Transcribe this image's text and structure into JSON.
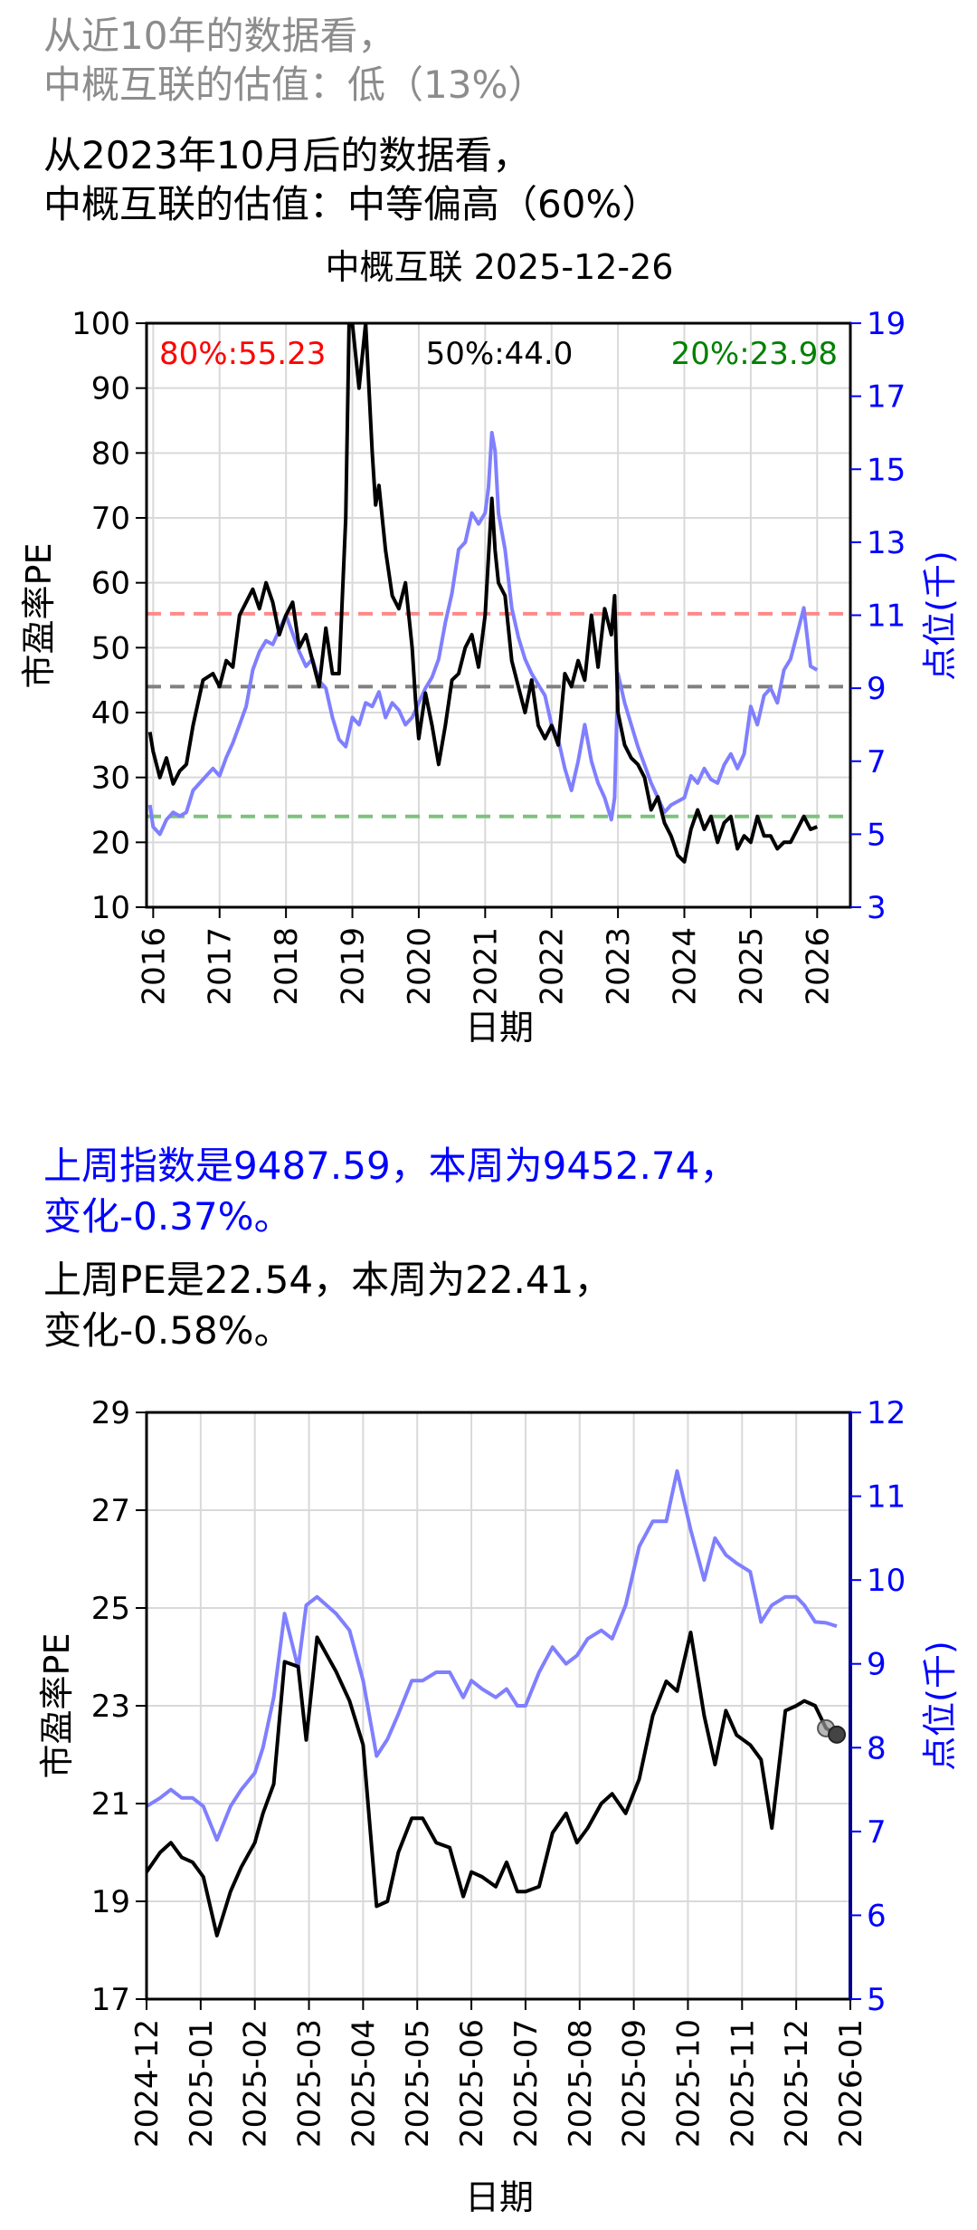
{
  "text": {
    "decade_line1": "从近10年的数据看，",
    "decade_line2": "中概互联的估值：低（13%）",
    "since_line1": "从2023年10月后的数据看，",
    "since_line2": "中概互联的估值：中等偏高（60%）",
    "index_change_line1": "上周指数是9487.59，本周为9452.74，",
    "index_change_line2": "变化-0.37%。",
    "pe_change_line1": "上周PE是22.54，本周为22.41，",
    "pe_change_line2": "变化-0.58%。"
  },
  "colors": {
    "pe_line": "#000000",
    "index_line": "#7f7fff",
    "p80": "#ff0000",
    "p50": "#000000",
    "p20": "#008000",
    "right_axis": "#0000ff"
  },
  "chart_data": [
    {
      "type": "line",
      "title": "中概互联 2025-12-26",
      "xlabel": "日期",
      "ylabel": "市盈率PE",
      "y2label": "点位(千)",
      "ylim": [
        10,
        100
      ],
      "y2lim": [
        3,
        19
      ],
      "xlim": [
        2015.9,
        2026.5
      ],
      "x_ticks": [
        "2016",
        "2017",
        "2018",
        "2019",
        "2020",
        "2021",
        "2022",
        "2023",
        "2024",
        "2025",
        "2026"
      ],
      "y_ticks": [
        "10",
        "20",
        "30",
        "40",
        "50",
        "60",
        "70",
        "80",
        "90",
        "100"
      ],
      "y2_ticks": [
        "3",
        "5",
        "7",
        "9",
        "11",
        "13",
        "15",
        "17",
        "19"
      ],
      "grid": true,
      "percentiles": [
        {
          "label": "80%:55.23",
          "value": 55.23,
          "color": "#ff0000"
        },
        {
          "label": "50%:44.0",
          "value": 44.0,
          "color": "#000000"
        },
        {
          "label": "20%:23.98",
          "value": 23.98,
          "color": "#008000"
        }
      ],
      "series": [
        {
          "axis": "left",
          "x": [
            2015.95,
            2016.0,
            2016.1,
            2016.2,
            2016.3,
            2016.4,
            2016.5,
            2016.6,
            2016.75,
            2016.9,
            2017.0,
            2017.1,
            2017.2,
            2017.3,
            2017.4,
            2017.5,
            2017.6,
            2017.7,
            2017.8,
            2017.9,
            2018.0,
            2018.1,
            2018.2,
            2018.3,
            2018.4,
            2018.5,
            2018.6,
            2018.7,
            2018.8,
            2018.9,
            2018.95,
            2019.0,
            2019.1,
            2019.2,
            2019.3,
            2019.35,
            2019.4,
            2019.5,
            2019.6,
            2019.7,
            2019.8,
            2019.9,
            2019.95,
            2020.0,
            2020.1,
            2020.2,
            2020.3,
            2020.4,
            2020.5,
            2020.6,
            2020.7,
            2020.8,
            2020.9,
            2021.0,
            2021.05,
            2021.1,
            2021.15,
            2021.2,
            2021.3,
            2021.4,
            2021.5,
            2021.6,
            2021.7,
            2021.8,
            2021.9,
            2022.0,
            2022.1,
            2022.2,
            2022.3,
            2022.4,
            2022.5,
            2022.6,
            2022.7,
            2022.8,
            2022.9,
            2022.95,
            2023.0,
            2023.1,
            2023.2,
            2023.3,
            2023.4,
            2023.5,
            2023.6,
            2023.7,
            2023.8,
            2023.9,
            2024.0,
            2024.1,
            2024.2,
            2024.3,
            2024.4,
            2024.5,
            2024.6,
            2024.7,
            2024.8,
            2024.9,
            2025.0,
            2025.1,
            2025.2,
            2025.3,
            2025.4,
            2025.5,
            2025.6,
            2025.7,
            2025.8,
            2025.9,
            2026.0
          ],
          "values": [
            37,
            34,
            30,
            33,
            29,
            31,
            32,
            38,
            45,
            46,
            44,
            48,
            47,
            55,
            57,
            59,
            56,
            60,
            57,
            52,
            55,
            57,
            50,
            52,
            48,
            44,
            53,
            46,
            46,
            70,
            100,
            100,
            90,
            100,
            80,
            72,
            75,
            65,
            58,
            56,
            60,
            50,
            42,
            36,
            43,
            38,
            32,
            38,
            45,
            46,
            50,
            52,
            47,
            55,
            64,
            73,
            65,
            60,
            58,
            48,
            44,
            40,
            45,
            38,
            36,
            38,
            35,
            46,
            44,
            48,
            45,
            55,
            47,
            56,
            52,
            58,
            40,
            35,
            33,
            32,
            30,
            25,
            27,
            23,
            21,
            18,
            17,
            22,
            25,
            22,
            24,
            20,
            23,
            24,
            19,
            21,
            20,
            24,
            21,
            21,
            19,
            20,
            20,
            22,
            24,
            22,
            22.4
          ],
          "color": "#000000"
        },
        {
          "axis": "right",
          "x": [
            2015.95,
            2016.0,
            2016.1,
            2016.2,
            2016.3,
            2016.4,
            2016.5,
            2016.6,
            2016.75,
            2016.9,
            2017.0,
            2017.1,
            2017.2,
            2017.3,
            2017.4,
            2017.5,
            2017.6,
            2017.7,
            2017.8,
            2017.9,
            2018.0,
            2018.1,
            2018.2,
            2018.3,
            2018.4,
            2018.5,
            2018.6,
            2018.7,
            2018.8,
            2018.9,
            2019.0,
            2019.1,
            2019.2,
            2019.3,
            2019.4,
            2019.5,
            2019.6,
            2019.7,
            2019.8,
            2019.9,
            2020.0,
            2020.1,
            2020.2,
            2020.3,
            2020.4,
            2020.5,
            2020.6,
            2020.7,
            2020.8,
            2020.9,
            2021.0,
            2021.05,
            2021.1,
            2021.15,
            2021.2,
            2021.3,
            2021.4,
            2021.5,
            2021.6,
            2021.7,
            2021.8,
            2021.9,
            2022.0,
            2022.1,
            2022.2,
            2022.3,
            2022.4,
            2022.5,
            2022.6,
            2022.7,
            2022.8,
            2022.9,
            2022.95,
            2023.0,
            2023.1,
            2023.2,
            2023.3,
            2023.4,
            2023.5,
            2023.6,
            2023.7,
            2023.8,
            2023.9,
            2024.0,
            2024.1,
            2024.2,
            2024.3,
            2024.4,
            2024.5,
            2024.6,
            2024.7,
            2024.8,
            2024.9,
            2025.0,
            2025.1,
            2025.2,
            2025.3,
            2025.4,
            2025.5,
            2025.6,
            2025.7,
            2025.8,
            2025.9,
            2026.0
          ],
          "values": [
            5.8,
            5.2,
            5.0,
            5.4,
            5.6,
            5.5,
            5.6,
            6.2,
            6.5,
            6.8,
            6.6,
            7.1,
            7.5,
            8.0,
            8.5,
            9.5,
            10.0,
            10.3,
            10.2,
            10.6,
            11.0,
            10.5,
            10.0,
            9.6,
            9.8,
            9.2,
            9.0,
            8.2,
            7.6,
            7.4,
            8.2,
            8.0,
            8.6,
            8.5,
            8.9,
            8.2,
            8.6,
            8.4,
            8.0,
            8.2,
            8.6,
            9.0,
            9.3,
            9.8,
            10.8,
            11.6,
            12.8,
            13.0,
            13.8,
            13.5,
            13.8,
            14.5,
            16.0,
            15.5,
            13.8,
            12.8,
            11.2,
            10.4,
            9.8,
            9.4,
            9.1,
            8.8,
            8.0,
            7.6,
            6.8,
            6.2,
            7.0,
            8.0,
            7.0,
            6.4,
            6.0,
            5.4,
            6.0,
            9.4,
            8.6,
            8.0,
            7.4,
            6.9,
            6.4,
            6.0,
            5.6,
            5.8,
            5.9,
            6.0,
            6.6,
            6.4,
            6.8,
            6.5,
            6.4,
            6.9,
            7.2,
            6.8,
            7.2,
            8.5,
            8.0,
            8.8,
            9.0,
            8.6,
            9.5,
            9.8,
            10.5,
            11.2,
            9.6,
            9.5
          ],
          "color": "#7f7fff"
        }
      ]
    },
    {
      "type": "line",
      "title": "",
      "xlabel": "日期",
      "ylabel": "市盈率PE",
      "y2label": "点位(千)",
      "ylim": [
        17,
        29
      ],
      "y2lim": [
        5,
        12
      ],
      "xlim": [
        0,
        13
      ],
      "x_ticks": [
        "2024-12",
        "2025-01",
        "2025-02",
        "2025-03",
        "2025-04",
        "2025-05",
        "2025-06",
        "2025-07",
        "2025-08",
        "2025-09",
        "2025-10",
        "2025-11",
        "2025-12",
        "2026-01"
      ],
      "y_ticks": [
        "17",
        "19",
        "21",
        "23",
        "25",
        "27",
        "29"
      ],
      "y2_ticks": [
        "5",
        "6",
        "7",
        "8",
        "9",
        "10",
        "11",
        "12"
      ],
      "grid": true,
      "series": [
        {
          "axis": "left",
          "x": [
            0,
            0.25,
            0.45,
            0.65,
            0.85,
            1.05,
            1.3,
            1.55,
            1.75,
            2.0,
            2.15,
            2.35,
            2.55,
            2.8,
            2.95,
            3.15,
            3.5,
            3.75,
            4.0,
            4.25,
            4.45,
            4.65,
            4.9,
            5.1,
            5.35,
            5.6,
            5.85,
            6.0,
            6.2,
            6.45,
            6.65,
            6.85,
            7.0,
            7.25,
            7.5,
            7.75,
            7.95,
            8.15,
            8.4,
            8.6,
            8.85,
            9.1,
            9.35,
            9.6,
            9.8,
            10.05,
            10.3,
            10.5,
            10.7,
            10.9,
            11.15,
            11.35,
            11.55,
            11.8,
            12.0,
            12.15,
            12.35,
            12.55,
            12.75
          ],
          "values": [
            19.6,
            20.0,
            20.2,
            19.9,
            19.8,
            19.5,
            18.3,
            19.2,
            19.7,
            20.2,
            20.8,
            21.4,
            23.9,
            23.8,
            22.3,
            24.4,
            23.7,
            23.1,
            22.2,
            18.9,
            19.0,
            20.0,
            20.7,
            20.7,
            20.2,
            20.1,
            19.1,
            19.6,
            19.5,
            19.3,
            19.8,
            19.2,
            19.2,
            19.3,
            20.4,
            20.8,
            20.2,
            20.5,
            21.0,
            21.2,
            20.8,
            21.5,
            22.8,
            23.5,
            23.3,
            24.5,
            22.8,
            21.8,
            22.9,
            22.4,
            22.2,
            21.9,
            20.5,
            22.9,
            23.0,
            23.1,
            23.0,
            22.54,
            22.41
          ],
          "color": "#000000"
        },
        {
          "axis": "right",
          "x": [
            0,
            0.25,
            0.45,
            0.65,
            0.85,
            1.05,
            1.3,
            1.55,
            1.75,
            2.0,
            2.15,
            2.35,
            2.55,
            2.8,
            2.95,
            3.15,
            3.5,
            3.75,
            4.0,
            4.25,
            4.45,
            4.65,
            4.9,
            5.1,
            5.35,
            5.6,
            5.85,
            6.0,
            6.2,
            6.45,
            6.65,
            6.85,
            7.0,
            7.25,
            7.5,
            7.75,
            7.95,
            8.15,
            8.4,
            8.6,
            8.85,
            9.1,
            9.35,
            9.6,
            9.8,
            10.05,
            10.3,
            10.5,
            10.7,
            10.9,
            11.15,
            11.35,
            11.55,
            11.8,
            12.0,
            12.15,
            12.35,
            12.55,
            12.75
          ],
          "values": [
            7.3,
            7.4,
            7.5,
            7.4,
            7.4,
            7.3,
            6.9,
            7.3,
            7.5,
            7.7,
            8.0,
            8.6,
            9.6,
            8.95,
            9.7,
            9.8,
            9.6,
            9.4,
            8.8,
            7.9,
            8.1,
            8.4,
            8.8,
            8.8,
            8.9,
            8.9,
            8.6,
            8.8,
            8.7,
            8.6,
            8.7,
            8.5,
            8.5,
            8.9,
            9.2,
            9.0,
            9.1,
            9.3,
            9.4,
            9.3,
            9.7,
            10.4,
            10.7,
            10.7,
            11.3,
            10.6,
            10.0,
            10.5,
            10.3,
            10.2,
            10.1,
            9.5,
            9.7,
            9.8,
            9.8,
            9.7,
            9.5,
            9.49,
            9.45
          ],
          "color": "#7f7fff"
        }
      ]
    }
  ]
}
